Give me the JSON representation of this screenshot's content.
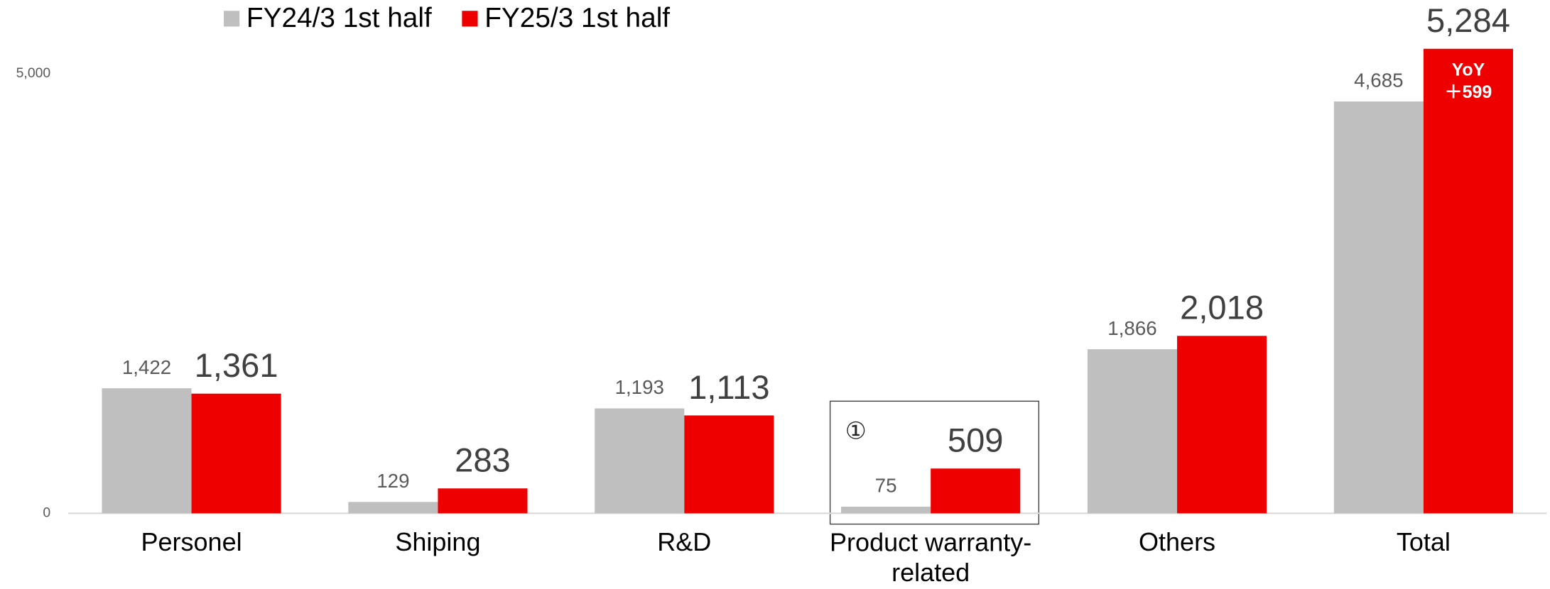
{
  "chart_data": {
    "type": "bar",
    "categories": [
      "Personel",
      "Shiping",
      "R&D",
      "Product warranty-related",
      "Others",
      "Total"
    ],
    "series": [
      {
        "name": "FY24/3 1st half",
        "color": "#bfbfbf",
        "values": [
          1422,
          129,
          1193,
          75,
          1866,
          4685
        ],
        "value_labels": [
          "1,422",
          "129",
          "1,193",
          "75",
          "1,866",
          "4,685"
        ]
      },
      {
        "name": "FY25/3 1st half",
        "color": "#ee0000",
        "values": [
          1361,
          283,
          1113,
          509,
          2018,
          5284
        ],
        "value_labels": [
          "1,361",
          "283",
          "1,113",
          "509",
          "2,018",
          "5,284"
        ]
      }
    ],
    "ylim": [
      0,
      5500
    ],
    "yticks": [
      0,
      {
        "value": 5000,
        "label": "5,000"
      }
    ],
    "grid": false,
    "legend": "top",
    "annotations": [
      "YoY",
      "＋599",
      "①"
    ]
  }
}
